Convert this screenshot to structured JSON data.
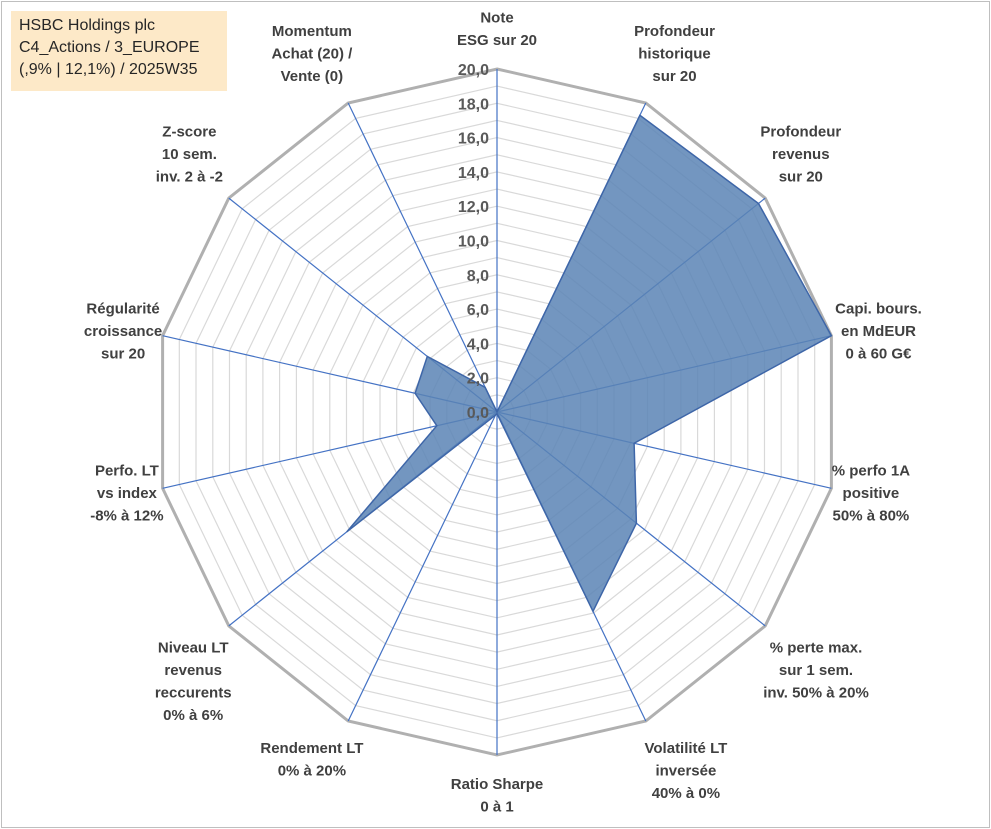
{
  "info_box": {
    "line1": "HSBC Holdings plc",
    "line2": "C4_Actions / 3_EUROPE",
    "line3": "(,9% | 12,1%) / 2025W35"
  },
  "chart_data": {
    "type": "radar",
    "r_range": [
      0,
      20
    ],
    "r_ticks": [
      "0,0",
      "2,0",
      "4,0",
      "6,0",
      "8,0",
      "10,0",
      "12,0",
      "14,0",
      "16,0",
      "18,0",
      "20,0"
    ],
    "grid": true,
    "fill_color": "#5b84b5",
    "outline_color": "#3e66a8",
    "axes": [
      {
        "label": [
          "Note",
          "ESG sur 20"
        ],
        "value": 0
      },
      {
        "label": [
          "Profondeur",
          "historique",
          "sur 20"
        ],
        "value": 19.2
      },
      {
        "label": [
          "Profondeur",
          "revenus",
          "sur 20"
        ],
        "value": 19.5
      },
      {
        "label": [
          "Capi. bours.",
          "en MdEUR",
          "0 à 60 G€"
        ],
        "value": 20
      },
      {
        "label": [
          "% perfo 1A",
          "positive",
          "50% à 80%"
        ],
        "value": 8.2
      },
      {
        "label": [
          "% perte max.",
          "sur 1 sem.",
          "inv. 50% à 20%"
        ],
        "value": 10.4
      },
      {
        "label": [
          "Volatilité LT",
          "inversée",
          "40% à 0%"
        ],
        "value": 12.9
      },
      {
        "label": [
          "Ratio Sharpe",
          "0 à 1"
        ],
        "value": 0.1
      },
      {
        "label": [
          "Rendement LT",
          "0% à 20%"
        ],
        "value": 0.2
      },
      {
        "label": [
          "Niveau LT",
          "revenus",
          "reccurents",
          "0% à 6%"
        ],
        "value": 11.2
      },
      {
        "label": [
          "Perfo. LT",
          "vs index",
          "-8% à 12%"
        ],
        "value": 3.6
      },
      {
        "label": [
          "Régularité",
          "croissance",
          "sur 20"
        ],
        "value": 4.9
      },
      {
        "label": [
          "Z-score",
          "10 sem.",
          "inv. 2 à -2"
        ],
        "value": 5.2
      },
      {
        "label": [
          "Momentum",
          "Achat (20) /",
          "Vente (0)"
        ],
        "value": 1.6
      }
    ]
  }
}
